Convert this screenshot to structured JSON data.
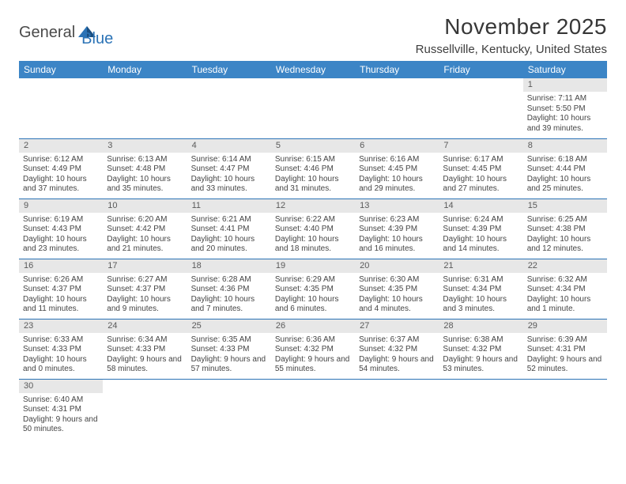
{
  "logo": {
    "general": "General",
    "blue": "Blue"
  },
  "title": "November 2025",
  "location": "Russellville, Kentucky, United States",
  "colors": {
    "header_bg": "#3c85c6",
    "header_text": "#ffffff",
    "rule": "#2b73b6",
    "daybar_bg": "#e7e7e7",
    "daybar_text": "#5a5a5a",
    "body_text": "#444444"
  },
  "weekdays": [
    "Sunday",
    "Monday",
    "Tuesday",
    "Wednesday",
    "Thursday",
    "Friday",
    "Saturday"
  ],
  "weeks": [
    [
      null,
      null,
      null,
      null,
      null,
      null,
      {
        "n": "1",
        "sr": "7:11 AM",
        "ss": "5:50 PM",
        "dl": "10 hours and 39 minutes."
      }
    ],
    [
      {
        "n": "2",
        "sr": "6:12 AM",
        "ss": "4:49 PM",
        "dl": "10 hours and 37 minutes."
      },
      {
        "n": "3",
        "sr": "6:13 AM",
        "ss": "4:48 PM",
        "dl": "10 hours and 35 minutes."
      },
      {
        "n": "4",
        "sr": "6:14 AM",
        "ss": "4:47 PM",
        "dl": "10 hours and 33 minutes."
      },
      {
        "n": "5",
        "sr": "6:15 AM",
        "ss": "4:46 PM",
        "dl": "10 hours and 31 minutes."
      },
      {
        "n": "6",
        "sr": "6:16 AM",
        "ss": "4:45 PM",
        "dl": "10 hours and 29 minutes."
      },
      {
        "n": "7",
        "sr": "6:17 AM",
        "ss": "4:45 PM",
        "dl": "10 hours and 27 minutes."
      },
      {
        "n": "8",
        "sr": "6:18 AM",
        "ss": "4:44 PM",
        "dl": "10 hours and 25 minutes."
      }
    ],
    [
      {
        "n": "9",
        "sr": "6:19 AM",
        "ss": "4:43 PM",
        "dl": "10 hours and 23 minutes."
      },
      {
        "n": "10",
        "sr": "6:20 AM",
        "ss": "4:42 PM",
        "dl": "10 hours and 21 minutes."
      },
      {
        "n": "11",
        "sr": "6:21 AM",
        "ss": "4:41 PM",
        "dl": "10 hours and 20 minutes."
      },
      {
        "n": "12",
        "sr": "6:22 AM",
        "ss": "4:40 PM",
        "dl": "10 hours and 18 minutes."
      },
      {
        "n": "13",
        "sr": "6:23 AM",
        "ss": "4:39 PM",
        "dl": "10 hours and 16 minutes."
      },
      {
        "n": "14",
        "sr": "6:24 AM",
        "ss": "4:39 PM",
        "dl": "10 hours and 14 minutes."
      },
      {
        "n": "15",
        "sr": "6:25 AM",
        "ss": "4:38 PM",
        "dl": "10 hours and 12 minutes."
      }
    ],
    [
      {
        "n": "16",
        "sr": "6:26 AM",
        "ss": "4:37 PM",
        "dl": "10 hours and 11 minutes."
      },
      {
        "n": "17",
        "sr": "6:27 AM",
        "ss": "4:37 PM",
        "dl": "10 hours and 9 minutes."
      },
      {
        "n": "18",
        "sr": "6:28 AM",
        "ss": "4:36 PM",
        "dl": "10 hours and 7 minutes."
      },
      {
        "n": "19",
        "sr": "6:29 AM",
        "ss": "4:35 PM",
        "dl": "10 hours and 6 minutes."
      },
      {
        "n": "20",
        "sr": "6:30 AM",
        "ss": "4:35 PM",
        "dl": "10 hours and 4 minutes."
      },
      {
        "n": "21",
        "sr": "6:31 AM",
        "ss": "4:34 PM",
        "dl": "10 hours and 3 minutes."
      },
      {
        "n": "22",
        "sr": "6:32 AM",
        "ss": "4:34 PM",
        "dl": "10 hours and 1 minute."
      }
    ],
    [
      {
        "n": "23",
        "sr": "6:33 AM",
        "ss": "4:33 PM",
        "dl": "10 hours and 0 minutes."
      },
      {
        "n": "24",
        "sr": "6:34 AM",
        "ss": "4:33 PM",
        "dl": "9 hours and 58 minutes."
      },
      {
        "n": "25",
        "sr": "6:35 AM",
        "ss": "4:33 PM",
        "dl": "9 hours and 57 minutes."
      },
      {
        "n": "26",
        "sr": "6:36 AM",
        "ss": "4:32 PM",
        "dl": "9 hours and 55 minutes."
      },
      {
        "n": "27",
        "sr": "6:37 AM",
        "ss": "4:32 PM",
        "dl": "9 hours and 54 minutes."
      },
      {
        "n": "28",
        "sr": "6:38 AM",
        "ss": "4:32 PM",
        "dl": "9 hours and 53 minutes."
      },
      {
        "n": "29",
        "sr": "6:39 AM",
        "ss": "4:31 PM",
        "dl": "9 hours and 52 minutes."
      }
    ],
    [
      {
        "n": "30",
        "sr": "6:40 AM",
        "ss": "4:31 PM",
        "dl": "9 hours and 50 minutes."
      },
      null,
      null,
      null,
      null,
      null,
      null
    ]
  ],
  "labels": {
    "sunrise": "Sunrise: ",
    "sunset": "Sunset: ",
    "daylight": "Daylight: "
  }
}
